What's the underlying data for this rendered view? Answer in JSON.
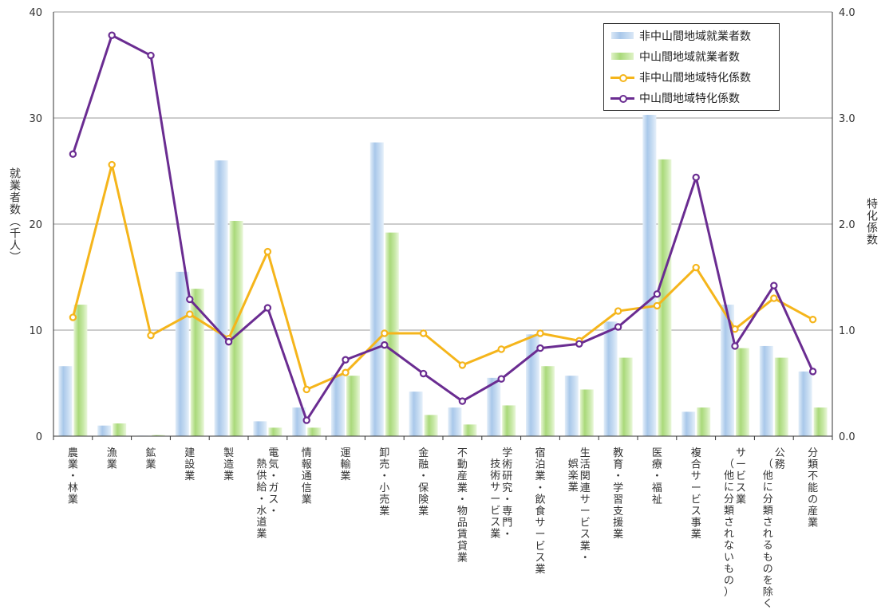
{
  "chart_data": {
    "type": "bar",
    "title": "",
    "categories": [
      "農業・林業",
      "漁業",
      "鉱業",
      "建設業",
      "製造業",
      "電気・ガス・熱供給・水道業",
      "情報通信業",
      "運輸業",
      "卸売・小売業",
      "金融・保険業",
      "不動産業・物品賃貸業",
      "学術研究・専門・技術サービス業",
      "宿泊業・飲食サービス業",
      "生活関連サービス業・娯楽業",
      "教育・学習支援業",
      "医療・福祉",
      "複合サービス事業",
      "サービス業（他に分類されないもの）",
      "公務（他に分類されるものを除く）",
      "分類不能の産業"
    ],
    "category_label_columns": [
      [
        "農業・林業"
      ],
      [
        "漁業"
      ],
      [
        "鉱業"
      ],
      [
        "建設業"
      ],
      [
        "製造業"
      ],
      [
        "電気・ガス・",
        "熱供給・水道業"
      ],
      [
        "情報通信業"
      ],
      [
        "運輸業"
      ],
      [
        "卸売・小売業"
      ],
      [
        "金融・保険業"
      ],
      [
        "不動産業・物品賃貸業"
      ],
      [
        "学術研究・専門・",
        "技術サービス業"
      ],
      [
        "宿泊業・飲食サービス業"
      ],
      [
        "生活関連サービス業・",
        "娯楽業"
      ],
      [
        "教育・学習支援業"
      ],
      [
        "医療・福祉"
      ],
      [
        "複合サービス事業"
      ],
      [
        "サービス業",
        "（他に分類されないもの）"
      ],
      [
        "公務",
        "（他に分類されるものを除く）"
      ],
      [
        "分類不能の産業"
      ]
    ],
    "y_left": {
      "label": "就業者数（千人）",
      "ylim": [
        0,
        40
      ],
      "ticks": [
        "0",
        "10",
        "20",
        "30",
        "40"
      ]
    },
    "y_right": {
      "label": "特化係数",
      "ylim": [
        0,
        4
      ],
      "ticks": [
        "0.0",
        "1.0",
        "2.0",
        "3.0",
        "4.0"
      ]
    },
    "grid": true,
    "legend_position": "top-right",
    "series": [
      {
        "name": "非中山間地域就業者数",
        "kind": "bar",
        "axis": "left",
        "color": "#a9c8ea",
        "values": [
          6.6,
          1.0,
          0.05,
          15.5,
          26.0,
          1.4,
          2.7,
          5.8,
          27.7,
          4.2,
          2.7,
          5.5,
          9.6,
          5.7,
          10.8,
          30.3,
          2.3,
          12.4,
          8.5,
          6.1
        ]
      },
      {
        "name": "中山間地域就業者数",
        "kind": "bar",
        "axis": "left",
        "color": "#a9d97a",
        "values": [
          12.4,
          1.2,
          0.1,
          13.9,
          20.3,
          0.8,
          0.8,
          5.7,
          19.2,
          2.0,
          1.1,
          2.9,
          6.6,
          4.4,
          7.4,
          26.1,
          2.7,
          8.3,
          7.4,
          2.7
        ]
      },
      {
        "name": "非中山間地域特化係数",
        "kind": "line",
        "axis": "right",
        "color": "#f5b51b",
        "values": [
          1.12,
          2.56,
          0.95,
          1.15,
          0.92,
          1.74,
          0.44,
          0.6,
          0.97,
          0.97,
          0.67,
          0.82,
          0.97,
          0.9,
          1.18,
          1.23,
          1.59,
          1.01,
          1.3,
          1.1
        ]
      },
      {
        "name": "中山間地域特化係数",
        "kind": "line",
        "axis": "right",
        "color": "#6a2c91",
        "values": [
          2.66,
          3.78,
          3.59,
          1.29,
          0.89,
          1.21,
          0.15,
          0.72,
          0.86,
          0.59,
          0.33,
          0.54,
          0.83,
          0.87,
          1.03,
          1.34,
          2.44,
          0.85,
          1.42,
          0.61
        ]
      }
    ]
  }
}
